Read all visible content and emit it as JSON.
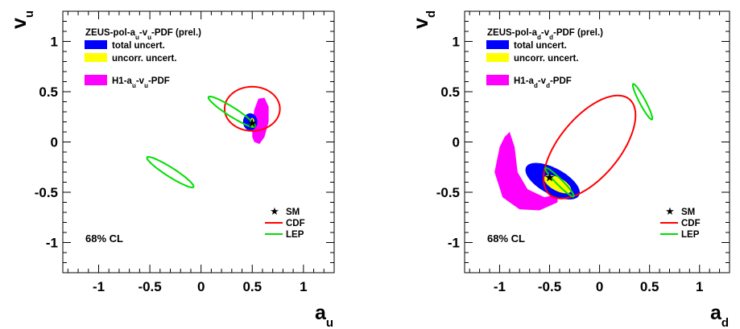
{
  "chart_data": [
    {
      "type": "contour",
      "title": "",
      "xlabel": "a",
      "xlabel_sub": "u",
      "ylabel": "v",
      "ylabel_sub": "u",
      "xlim": [
        -1.35,
        1.3
      ],
      "ylim": [
        -1.3,
        1.3
      ],
      "xticks": [
        -1,
        -0.5,
        0,
        0.5,
        1
      ],
      "yticks": [
        -1,
        -0.5,
        0,
        0.5,
        1
      ],
      "xtick_labels": [
        "-1",
        "-0.5",
        "0",
        "0.5",
        "1"
      ],
      "ytick_labels": [
        "-1",
        "-0.5",
        "0",
        "0.5",
        "1"
      ],
      "legend": {
        "header": "ZEUS-pol-a u-v u-PDF (prel.)",
        "header_parts": [
          "ZEUS-pol-a",
          "u",
          "-v",
          "u",
          "-PDF (prel.)"
        ],
        "entries": [
          "total uncert.",
          "uncorr. uncert."
        ],
        "h1_parts": [
          "H1-a",
          "u",
          "-v",
          "u",
          "-PDF"
        ]
      },
      "line_legend": [
        "SM",
        "CDF",
        "LEP"
      ],
      "cl_label": "68% CL",
      "colors": {
        "total": "#0000ff",
        "uncorr": "#ffff00",
        "h1": "#ff00ff",
        "cdf": "#ff0000",
        "lep": "#00dd00"
      },
      "sm_point": [
        0.5,
        0.19
      ],
      "h1_region": [
        [
          0.5,
          0.05
        ],
        [
          0.52,
          0.0
        ],
        [
          0.57,
          -0.02
        ],
        [
          0.62,
          0.05
        ],
        [
          0.66,
          0.2
        ],
        [
          0.66,
          0.35
        ],
        [
          0.62,
          0.44
        ],
        [
          0.56,
          0.43
        ],
        [
          0.52,
          0.32
        ],
        [
          0.5,
          0.18
        ]
      ],
      "zeus_total": {
        "center": [
          0.48,
          0.2
        ],
        "rx": 0.07,
        "ry": 0.085,
        "angle": 0
      },
      "zeus_uncorr": {
        "center": [
          0.5,
          0.19
        ],
        "rx": 0.022,
        "ry": 0.05,
        "angle": 0
      },
      "cdf_contour": {
        "center": [
          0.5,
          0.33
        ],
        "rx": 0.27,
        "ry": 0.22,
        "angle": 0
      },
      "lep_contours": [
        {
          "center": [
            0.3,
            0.3
          ],
          "rx": 0.27,
          "ry": 0.045,
          "angle": -33
        },
        {
          "center": [
            -0.3,
            -0.3
          ],
          "rx": 0.27,
          "ry": 0.045,
          "angle": -33
        }
      ]
    },
    {
      "type": "contour",
      "title": "",
      "xlabel": "a",
      "xlabel_sub": "d",
      "ylabel": "v",
      "ylabel_sub": "d",
      "xlim": [
        -1.35,
        1.3
      ],
      "ylim": [
        -1.3,
        1.3
      ],
      "xticks": [
        -1,
        -0.5,
        0,
        0.5,
        1
      ],
      "yticks": [
        -1,
        -0.5,
        0,
        0.5,
        1
      ],
      "xtick_labels": [
        "-1",
        "-0.5",
        "0",
        "0.5",
        "1"
      ],
      "ytick_labels": [
        "-1",
        "-0.5",
        "0",
        "0.5",
        "1"
      ],
      "legend": {
        "header_parts": [
          "ZEUS-pol-a",
          "d",
          "-v",
          "d",
          "-PDF (prel.)"
        ],
        "entries": [
          "total uncert.",
          "uncorr. uncert."
        ],
        "h1_parts": [
          "H1-a",
          "d",
          "-v",
          "d",
          "-PDF"
        ]
      },
      "line_legend": [
        "SM",
        "CDF",
        "LEP"
      ],
      "cl_label": "68% CL",
      "colors": {
        "total": "#0000ff",
        "uncorr": "#ffff00",
        "h1": "#ff00ff",
        "cdf": "#ff0000",
        "lep": "#00dd00"
      },
      "sm_point": [
        -0.5,
        -0.35
      ],
      "h1_region": [
        [
          -1.0,
          -0.05
        ],
        [
          -1.05,
          -0.3
        ],
        [
          -0.97,
          -0.55
        ],
        [
          -0.8,
          -0.67
        ],
        [
          -0.6,
          -0.68
        ],
        [
          -0.42,
          -0.6
        ],
        [
          -0.42,
          -0.52
        ],
        [
          -0.55,
          -0.55
        ],
        [
          -0.72,
          -0.47
        ],
        [
          -0.82,
          -0.3
        ],
        [
          -0.85,
          -0.05
        ],
        [
          -0.9,
          0.1
        ],
        [
          -0.95,
          0.05
        ]
      ],
      "zeus_total": {
        "center": [
          -0.47,
          -0.39
        ],
        "rx": 0.3,
        "ry": 0.13,
        "angle": -28
      },
      "zeus_uncorr": {
        "center": [
          -0.42,
          -0.42
        ],
        "rx": 0.15,
        "ry": 0.065,
        "angle": -28
      },
      "cdf_contour": {
        "center": [
          -0.1,
          -0.05
        ],
        "rx": 0.62,
        "ry": 0.3,
        "angle": 50
      },
      "lep_contours": [
        {
          "center": [
            -0.4,
            -0.4
          ],
          "rx": 0.2,
          "ry": 0.03,
          "angle": -45
        },
        {
          "center": [
            0.43,
            0.4
          ],
          "rx": 0.2,
          "ry": 0.03,
          "angle": -62
        }
      ]
    }
  ]
}
